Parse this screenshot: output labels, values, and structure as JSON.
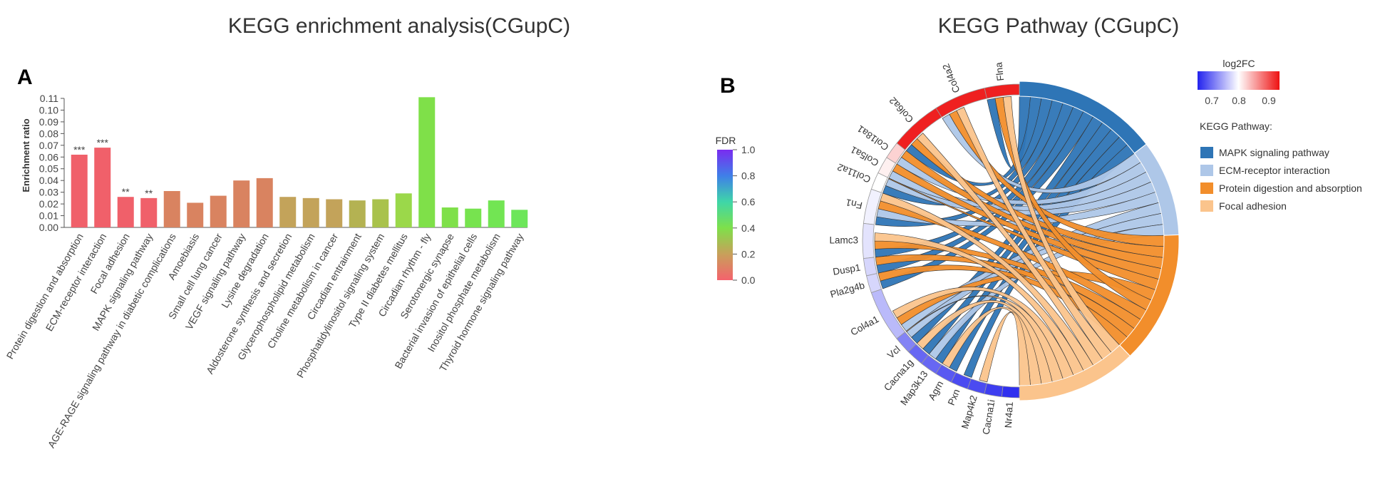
{
  "panel_a": {
    "letter": "A",
    "title": "KEGG enrichment analysis(CGupC)",
    "colorbar": {
      "label": "FDR",
      "ticks": [
        "1.0",
        "0.8",
        "0.6",
        "0.4",
        "0.2",
        "0.0"
      ]
    }
  },
  "panel_b": {
    "letter": "B",
    "title": "KEGG Pathway (CGupC)",
    "log2fc_legend": {
      "title": "log2FC",
      "ticks": [
        "0.7",
        "0.8",
        "0.9"
      ]
    },
    "pathway_legend": {
      "title": "KEGG Pathway:",
      "items": [
        {
          "label": "MAPK signaling pathway",
          "color": "#2e75b6"
        },
        {
          "label": "ECM-receptor interaction",
          "color": "#aec7e8"
        },
        {
          "label": "Protein digestion and absorption",
          "color": "#f28e2b"
        },
        {
          "label": "Focal adhesion",
          "color": "#fbc48c"
        }
      ]
    }
  },
  "chart_data": [
    {
      "type": "bar",
      "title": "KEGG enrichment analysis(CGupC)",
      "xlabel": "",
      "ylabel": "Enrichment ratio",
      "ylim": [
        0,
        0.11
      ],
      "yticks": [
        "0.00",
        "0.01",
        "0.02",
        "0.03",
        "0.04",
        "0.05",
        "0.06",
        "0.07",
        "0.08",
        "0.09",
        "0.10",
        "0.11"
      ],
      "categories": [
        "Protein digestion and absorption",
        "ECM-receptor interaction",
        "Focal adhesion",
        "MAPK signaling pathway",
        "AGE-RAGE signaling pathway in diabetic complications",
        "Amoebiasis",
        "Small cell lung cancer",
        "VEGF signaling pathway",
        "Lysine degradation",
        "Aldosterone synthesis and secretion",
        "Glycerophospholipid metabolism",
        "Choline metabolism in cancer",
        "Circadian entrainment",
        "Phosphatidylinositol signaling system",
        "Type II diabetes mellitus",
        "Circadian rhythm - fly",
        "Serotonergic synapse",
        "Bacterial invasion of epithelial cells",
        "Inositol phosphate metabolism",
        "Thyroid hormone signaling pathway"
      ],
      "values": [
        0.062,
        0.068,
        0.026,
        0.025,
        0.031,
        0.021,
        0.027,
        0.04,
        0.042,
        0.026,
        0.025,
        0.024,
        0.023,
        0.024,
        0.029,
        0.111,
        0.017,
        0.016,
        0.023,
        0.015
      ],
      "colors": [
        "#f0606a",
        "#f0606a",
        "#f0606a",
        "#f0606a",
        "#d98360",
        "#d98360",
        "#d98360",
        "#d98360",
        "#d98360",
        "#c3a35a",
        "#c3a35a",
        "#c3a35a",
        "#b4b252",
        "#a9c24c",
        "#9bd84a",
        "#7fe049",
        "#7fe04a",
        "#77e34f",
        "#72e553",
        "#6de65a"
      ],
      "significance": [
        "***",
        "***",
        "**",
        "**",
        "",
        "",
        "",
        "",
        "",
        "",
        "",
        "",
        "",
        "",
        "",
        "",
        "",
        "",
        "",
        ""
      ]
    },
    {
      "type": "chord",
      "title": "KEGG Pathway (CGupC)",
      "pathways": [
        "MAPK signaling pathway",
        "ECM-receptor interaction",
        "Protein digestion and absorption",
        "Focal adhesion"
      ],
      "pathway_colors": [
        "#2e75b6",
        "#aec7e8",
        "#f28e2b",
        "#fbc48c"
      ],
      "pathway_gene_counts": [
        12,
        8,
        11,
        10
      ],
      "genes": [
        "Flna",
        "Col4a2",
        "Col6a2",
        "Col18a1",
        "Col5a1",
        "Col11a2",
        "Fn1",
        "Lamc3",
        "Dusp1",
        "Pla2g4b",
        "Col4a1",
        "Vcl",
        "Cacna1g",
        "Map3k13",
        "Agrn",
        "Pxn",
        "Map4k2",
        "Cacna1i",
        "Nr4a1"
      ],
      "gene_log2fc": [
        0.96,
        0.96,
        0.96,
        0.84,
        0.82,
        0.81,
        0.8,
        0.79,
        0.78,
        0.78,
        0.76,
        0.72,
        0.7,
        0.7,
        0.69,
        0.68,
        0.68,
        0.67,
        0.66
      ],
      "gene_arc_weights": [
        2,
        3,
        3,
        1,
        1,
        1,
        2,
        2,
        1,
        1,
        3,
        1,
        1,
        1,
        1,
        1,
        1,
        1,
        1
      ],
      "log2fc_range": [
        0.65,
        0.97
      ]
    }
  ]
}
